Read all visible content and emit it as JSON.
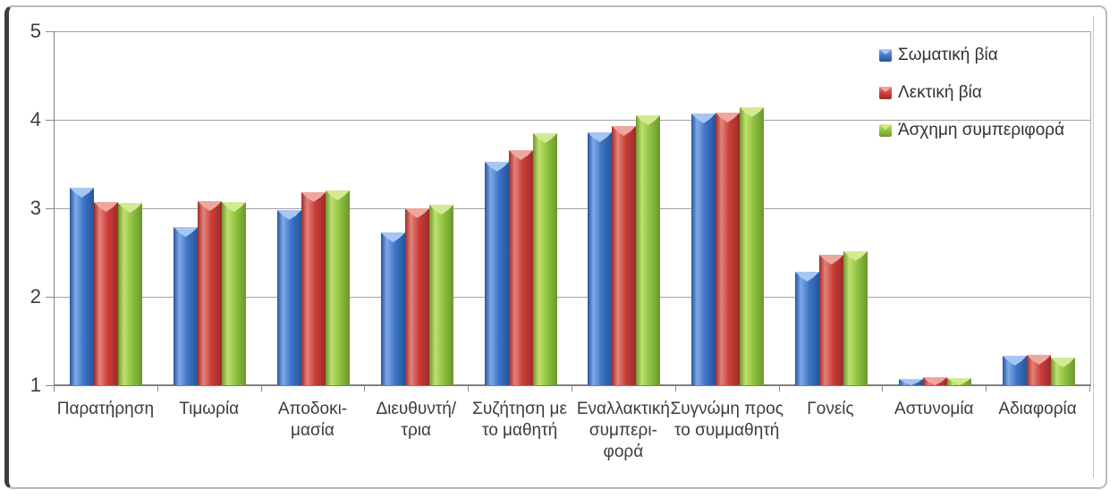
{
  "chart_data": {
    "type": "bar",
    "title": "",
    "xlabel": "",
    "ylabel": "",
    "y_axis": {
      "min": 1,
      "max": 5,
      "ticks": [
        1,
        2,
        3,
        4,
        5
      ],
      "grid": true
    },
    "legend_position": "top-right",
    "categories": [
      [
        "Παρατήρηση"
      ],
      [
        "Τιμωρία"
      ],
      [
        "Αποδοκι-",
        "μασία"
      ],
      [
        "Διευθυντή/",
        "τρια"
      ],
      [
        "Συζήτηση με",
        "το μαθητή"
      ],
      [
        "Εναλλακτική",
        "συμπερι-",
        "φορά"
      ],
      [
        "Συγνώμη προς",
        "το συμμαθητή"
      ],
      [
        "Γονείς"
      ],
      [
        "Αστυνομία"
      ],
      [
        "Αδιαφορία"
      ]
    ],
    "series": [
      {
        "name": "Σωματική βία",
        "color": "#3e74c6",
        "color_light": "#7fa9e8",
        "color_dark": "#27549f",
        "color_cap": "#a7c6f2",
        "values": [
          3.23,
          2.79,
          2.98,
          2.73,
          3.53,
          3.86,
          4.07,
          2.28,
          1.07,
          1.33
        ]
      },
      {
        "name": "Λεκτική βία",
        "color": "#c93d37",
        "color_light": "#e4837b",
        "color_dark": "#9e2c28",
        "color_cap": "#eda79e",
        "values": [
          3.07,
          3.08,
          3.18,
          3.0,
          3.66,
          3.93,
          4.08,
          2.47,
          1.09,
          1.34
        ]
      },
      {
        "name": "Άσχημη συμπεριφορά",
        "color": "#8ec23e",
        "color_light": "#bfdf6e",
        "color_dark": "#6d962e",
        "color_cap": "#d3ea93",
        "values": [
          3.06,
          3.07,
          3.2,
          3.04,
          3.85,
          4.05,
          4.14,
          2.52,
          1.08,
          1.31
        ]
      }
    ]
  }
}
